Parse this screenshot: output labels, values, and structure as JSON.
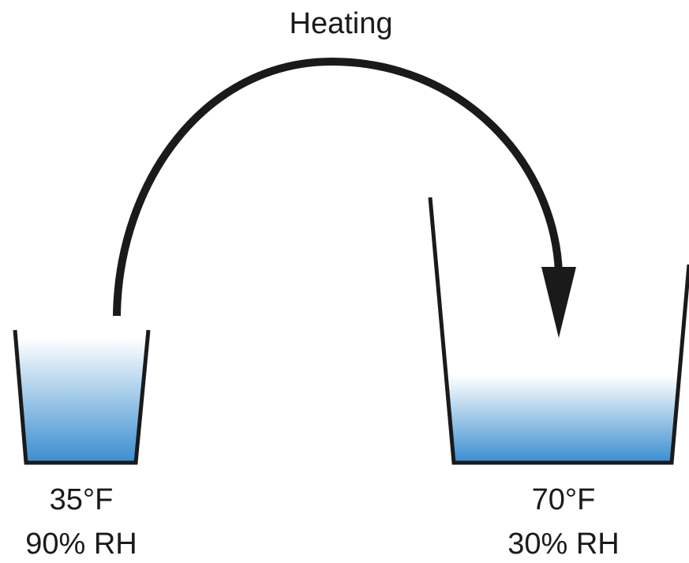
{
  "process": {
    "label": "Heating"
  },
  "containers": [
    {
      "temperature": "35°F",
      "humidity": "90% RH"
    },
    {
      "temperature": "70°F",
      "humidity": "30% RH"
    }
  ],
  "colors": {
    "water_top": "#ffffff",
    "water_bottom": "#3d8fd0",
    "outline": "#1a1a1a"
  }
}
